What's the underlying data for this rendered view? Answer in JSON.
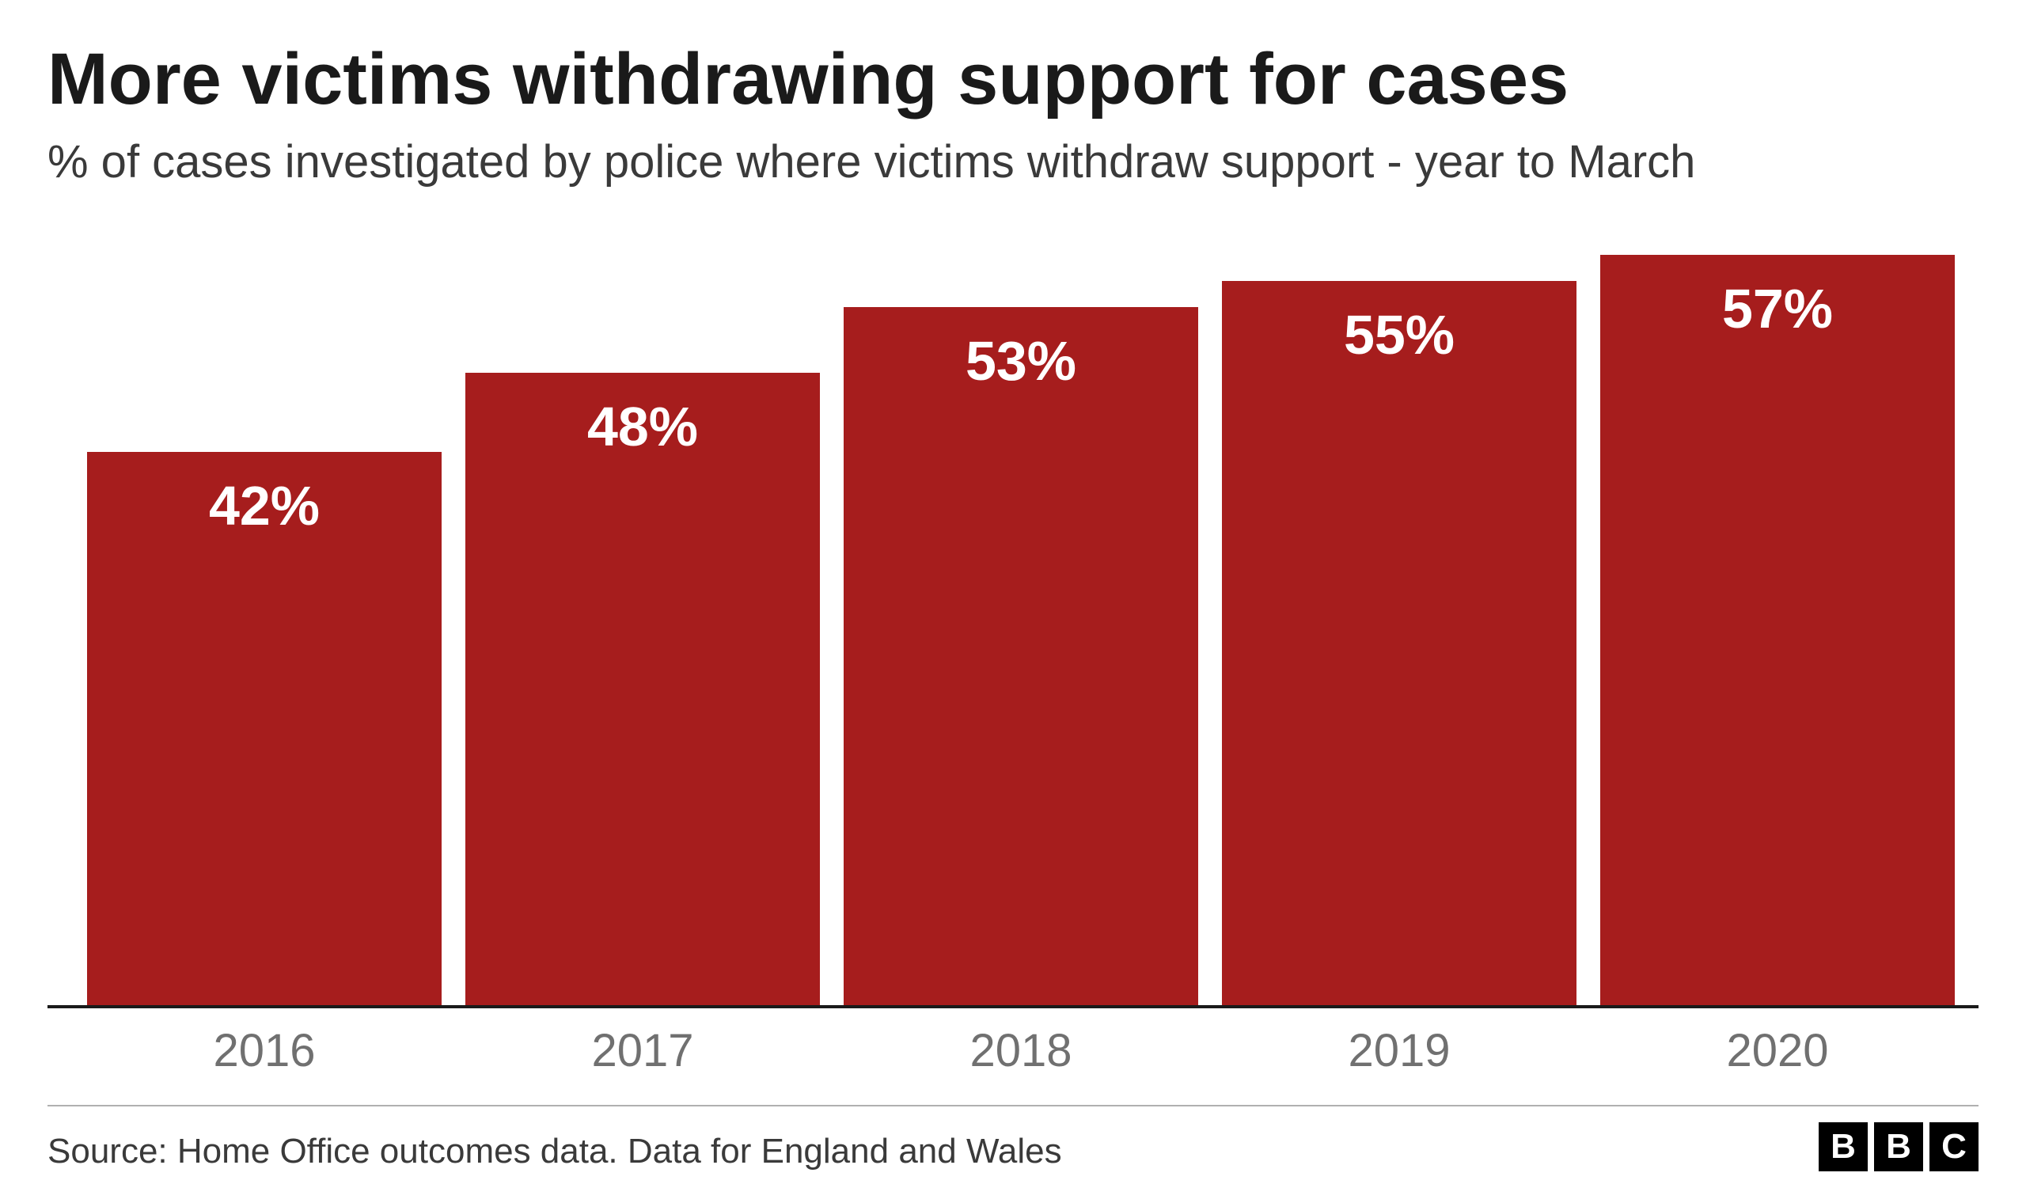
{
  "chart": {
    "type": "bar",
    "title": "More victims withdrawing support for cases",
    "subtitle": "% of cases investigated by police where victims withdraw support - year to March",
    "categories": [
      "2016",
      "2017",
      "2018",
      "2019",
      "2020"
    ],
    "values": [
      42,
      48,
      53,
      55,
      57
    ],
    "value_labels": [
      "42%",
      "48%",
      "53%",
      "55%",
      "57%"
    ],
    "bar_color": "#a61d1d",
    "value_label_color": "#ffffff",
    "value_label_fontsize": 70,
    "value_label_fontweight": 700,
    "title_color": "#1a1a1a",
    "title_fontsize": 92,
    "title_fontweight": 700,
    "subtitle_color": "#3a3a3a",
    "subtitle_fontsize": 58,
    "x_label_color": "#707070",
    "x_label_fontsize": 58,
    "axis_line_color": "#1a1a1a",
    "axis_line_width": 4,
    "background_color": "#ffffff",
    "ylim_max": 60,
    "bar_gap": 30
  },
  "footer": {
    "source": "Source: Home Office outcomes data. Data for England and Wales",
    "source_color": "#3a3a3a",
    "source_fontsize": 44,
    "divider_color": "#b0b0b0",
    "logo_letters": [
      "B",
      "B",
      "C"
    ],
    "logo_bg": "#000000",
    "logo_fg": "#ffffff"
  }
}
